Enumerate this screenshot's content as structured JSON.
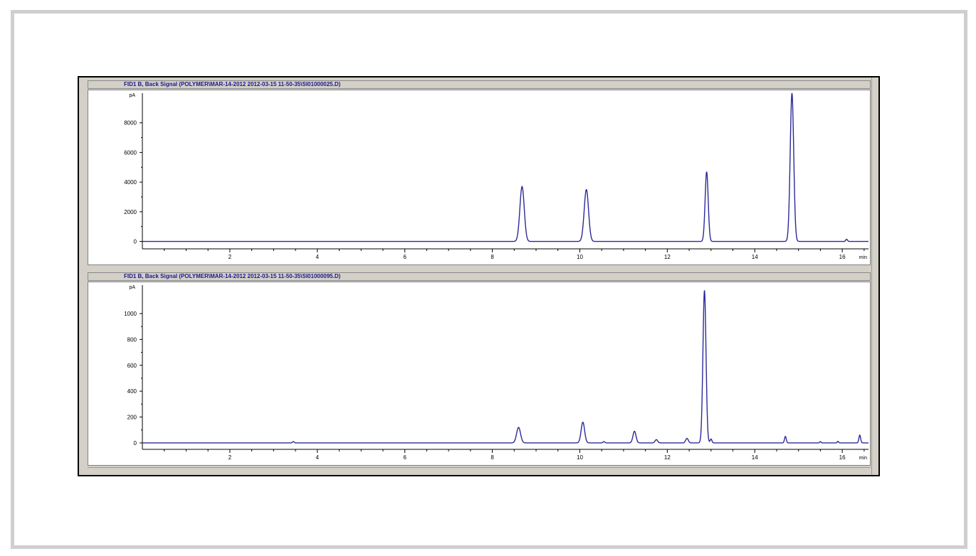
{
  "chart_data": [
    {
      "type": "line",
      "title": "FID1 B, Back Signal (POLYMER\\MAR-14-2012 2012-03-15 11-50-35\\SI01000025.D)",
      "ylabel": "pA",
      "xlabel": "min",
      "xlim": [
        0,
        16.6
      ],
      "ylim": [
        -500,
        10000
      ],
      "xticks": [
        2,
        4,
        6,
        8,
        10,
        12,
        14,
        16
      ],
      "yticks": [
        0,
        2000,
        4000,
        6000,
        8000
      ],
      "color": "#2a2a9a",
      "peaks": [
        {
          "rt": 8.68,
          "height": 3700,
          "width": 0.05
        },
        {
          "rt": 10.15,
          "height": 3500,
          "width": 0.05
        },
        {
          "rt": 12.9,
          "height": 4700,
          "width": 0.035
        },
        {
          "rt": 14.85,
          "height": 10000,
          "width": 0.04
        },
        {
          "rt": 16.1,
          "height": 150,
          "width": 0.02
        }
      ]
    },
    {
      "type": "line",
      "title": "FID1 B, Back Signal (POLYMER\\MAR-14-2012 2012-03-15 11-50-35\\SI01000095.D)",
      "ylabel": "pA",
      "xlabel": "min",
      "xlim": [
        0,
        16.6
      ],
      "ylim": [
        -50,
        1220
      ],
      "xticks": [
        2,
        4,
        6,
        8,
        10,
        12,
        14,
        16
      ],
      "yticks": [
        0,
        200,
        400,
        600,
        800,
        1000
      ],
      "color": "#2a2a9a",
      "peaks": [
        {
          "rt": 3.45,
          "height": 10,
          "width": 0.02
        },
        {
          "rt": 8.6,
          "height": 120,
          "width": 0.045
        },
        {
          "rt": 10.07,
          "height": 160,
          "width": 0.04
        },
        {
          "rt": 10.55,
          "height": 10,
          "width": 0.02
        },
        {
          "rt": 11.25,
          "height": 90,
          "width": 0.035
        },
        {
          "rt": 11.75,
          "height": 25,
          "width": 0.03
        },
        {
          "rt": 12.45,
          "height": 35,
          "width": 0.03
        },
        {
          "rt": 12.85,
          "height": 1180,
          "width": 0.035
        },
        {
          "rt": 13.0,
          "height": 30,
          "width": 0.02
        },
        {
          "rt": 14.7,
          "height": 50,
          "width": 0.02
        },
        {
          "rt": 15.5,
          "height": 10,
          "width": 0.015
        },
        {
          "rt": 15.9,
          "height": 12,
          "width": 0.015
        },
        {
          "rt": 16.4,
          "height": 60,
          "width": 0.02
        }
      ]
    }
  ]
}
